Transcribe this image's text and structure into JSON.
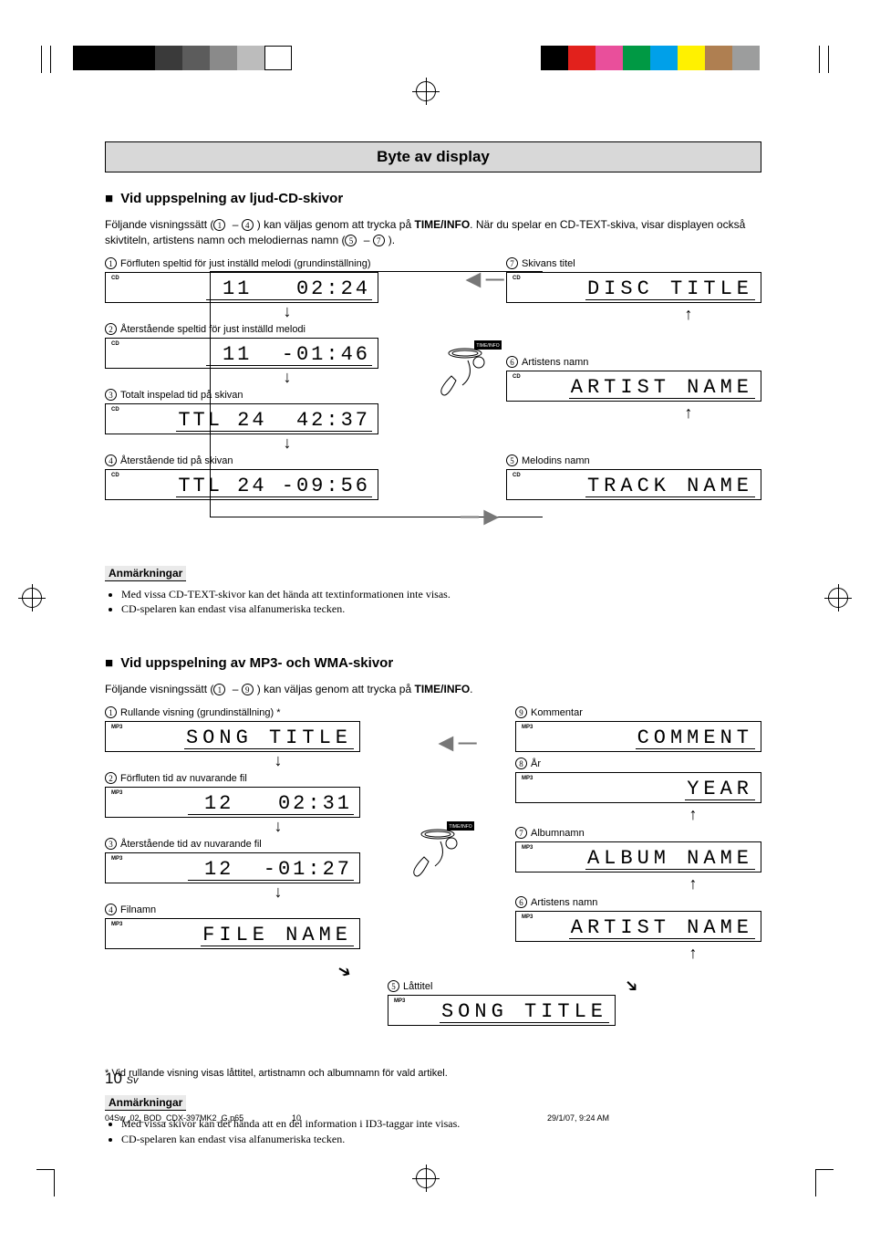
{
  "registration": {
    "left_squares": [
      "#000000",
      "#000000",
      "#000000",
      "#3a3a3a",
      "#5c5c5c",
      "#8a8a8a",
      "#bcbcbc",
      "#ffffff"
    ],
    "right_squares": [
      "#000000",
      "#e2211c",
      "#e94f9b",
      "#009944",
      "#00a0e9",
      "#fff100",
      "#af7f51",
      "#9c9d9d"
    ]
  },
  "title": "Byte av display",
  "section_cd": {
    "heading": "Vid uppspelning av ljud-CD-skivor",
    "intro_a": "Följande visningssätt (",
    "intro_b": ") kan väljas genom att trycka på ",
    "intro_key": "TIME/INFO",
    "intro_c": ". När du spelar en CD-TEXT-skiva, visar displayen också skivtiteln, artistens namn och melodiernas namn (",
    "intro_d": ").",
    "range1_start": "1",
    "range1_end": "4",
    "range2_start": "5",
    "range2_end": "7",
    "items_left": [
      {
        "n": "1",
        "label": "Förfluten speltid för just inställd melodi (grundinställning)",
        "tag": "CD",
        "text": " 11   02:24"
      },
      {
        "n": "2",
        "label": "Återstående speltid för just inställd melodi",
        "tag": "CD",
        "text": " 11  -01:46"
      },
      {
        "n": "3",
        "label": "Totalt inspelad tid på skivan",
        "tag": "CD",
        "text": "TTL 24  42:37"
      },
      {
        "n": "4",
        "label": "Återstående tid på skivan",
        "tag": "CD",
        "text": "TTL 24 -09:56"
      }
    ],
    "items_right": [
      {
        "n": "7",
        "label": "Skivans titel",
        "tag": "CD",
        "text": "DISC TITLE"
      },
      {
        "n": "6",
        "label": "Artistens namn",
        "tag": "CD",
        "text": "ARTIST NAME"
      },
      {
        "n": "5",
        "label": "Melodins namn",
        "tag": "CD",
        "text": "TRACK NAME"
      }
    ],
    "remote_label": "TIME/INFO",
    "notes_head": "Anmärkningar",
    "notes": [
      "Med vissa CD-TEXT-skivor kan det hända att textinformationen inte visas.",
      "CD-spelaren kan endast visa alfanumeriska tecken."
    ]
  },
  "section_mp3": {
    "heading": "Vid uppspelning av MP3- och WMA-skivor",
    "intro_a": "Följande visningssätt (",
    "intro_b": ") kan väljas genom att trycka på ",
    "intro_key": "TIME/INFO",
    "intro_c": ".",
    "range_start": "1",
    "range_end": "9",
    "items_left": [
      {
        "n": "1",
        "label": "Rullande visning (grundinställning) *",
        "tag": "MP3",
        "text": "SONG TITLE"
      },
      {
        "n": "2",
        "label": "Förfluten tid av nuvarande fil",
        "tag": "MP3",
        "text": " 12   02:31"
      },
      {
        "n": "3",
        "label": "Återstående tid av nuvarande fil",
        "tag": "MP3",
        "text": " 12  -01:27"
      },
      {
        "n": "4",
        "label": "Filnamn",
        "tag": "MP3",
        "text": "FILE NAME"
      }
    ],
    "item_mid": {
      "n": "5",
      "label": "Låttitel",
      "tag": "MP3",
      "text": "SONG TITLE"
    },
    "items_right": [
      {
        "n": "9",
        "label": "Kommentar",
        "tag": "MP3",
        "text": "COMMENT"
      },
      {
        "n": "8",
        "label": "År",
        "tag": "MP3",
        "text": "YEAR"
      },
      {
        "n": "7",
        "label": "Albumnamn",
        "tag": "MP3",
        "text": "ALBUM NAME"
      },
      {
        "n": "6",
        "label": "Artistens namn",
        "tag": "MP3",
        "text": "ARTIST NAME"
      }
    ],
    "footnote": "* Vid rullande visning visas låttitel, artistnamn och albumnamn för vald artikel.",
    "notes_head": "Anmärkningar",
    "notes": [
      "Med vissa skivor kan det hända att en del information i ID3-taggar inte visas.",
      "CD-spelaren kan endast visa alfanumeriska tecken."
    ]
  },
  "page_number": "10",
  "page_lang": "Sv",
  "footer": {
    "file": "04Sw_02_BOD_CDX-397MK2_G.p65",
    "page": "10",
    "date": "29/1/07, 9:24 AM"
  },
  "colors": {
    "title_bg": "#d8d8d8",
    "arrow_gray": "#808080",
    "text": "#000000"
  }
}
